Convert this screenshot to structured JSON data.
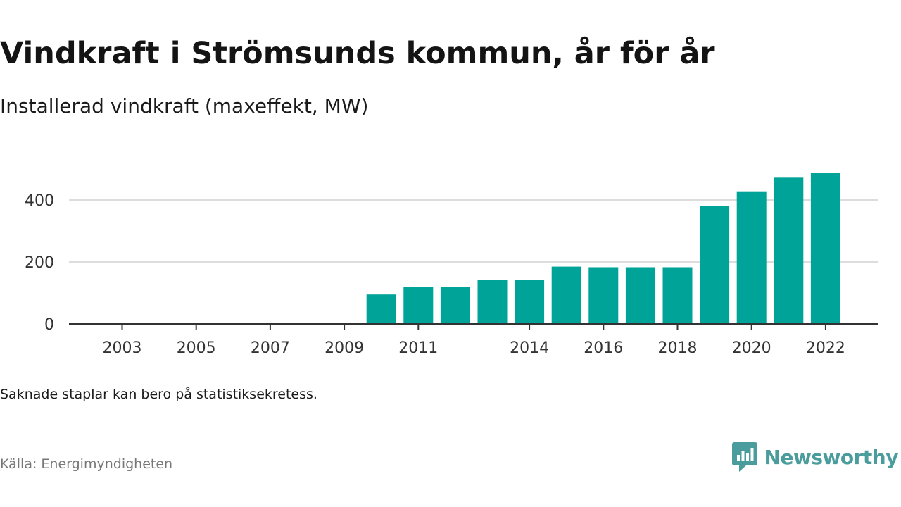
{
  "header": {
    "title": "Vindkraft i Strömsunds kommun, år för år",
    "subtitle": "Installerad vindkraft (maxeffekt, MW)"
  },
  "footer": {
    "note": "Saknade staplar kan bero på statistiksekretess.",
    "source": "Källa: Energimyndigheten",
    "brand": "Newsworthy"
  },
  "colors": {
    "bar": "#00a398",
    "grid": "#dddddd",
    "axis": "#333333",
    "brand": "#4a9d9c"
  },
  "chart_data": {
    "type": "bar",
    "title": "Vindkraft i Strömsunds kommun, år för år",
    "subtitle": "Installerad vindkraft (maxeffekt, MW)",
    "xlabel": "",
    "ylabel": "",
    "categories": [
      2003,
      2004,
      2005,
      2006,
      2007,
      2008,
      2009,
      2010,
      2011,
      2012,
      2013,
      2014,
      2015,
      2016,
      2017,
      2018,
      2019,
      2020,
      2021,
      2022
    ],
    "values": [
      0,
      0,
      0,
      0,
      0,
      0,
      0,
      95,
      120,
      120,
      143,
      143,
      185,
      183,
      183,
      183,
      381,
      428,
      472,
      488
    ],
    "x_tick_labels": [
      "2003",
      "2005",
      "2007",
      "2009",
      "2011",
      "2014",
      "2016",
      "2018",
      "2020",
      "2022"
    ],
    "y_ticks": [
      0,
      200,
      400
    ],
    "ylim": [
      0,
      520
    ],
    "grid": true,
    "legend": "none"
  }
}
